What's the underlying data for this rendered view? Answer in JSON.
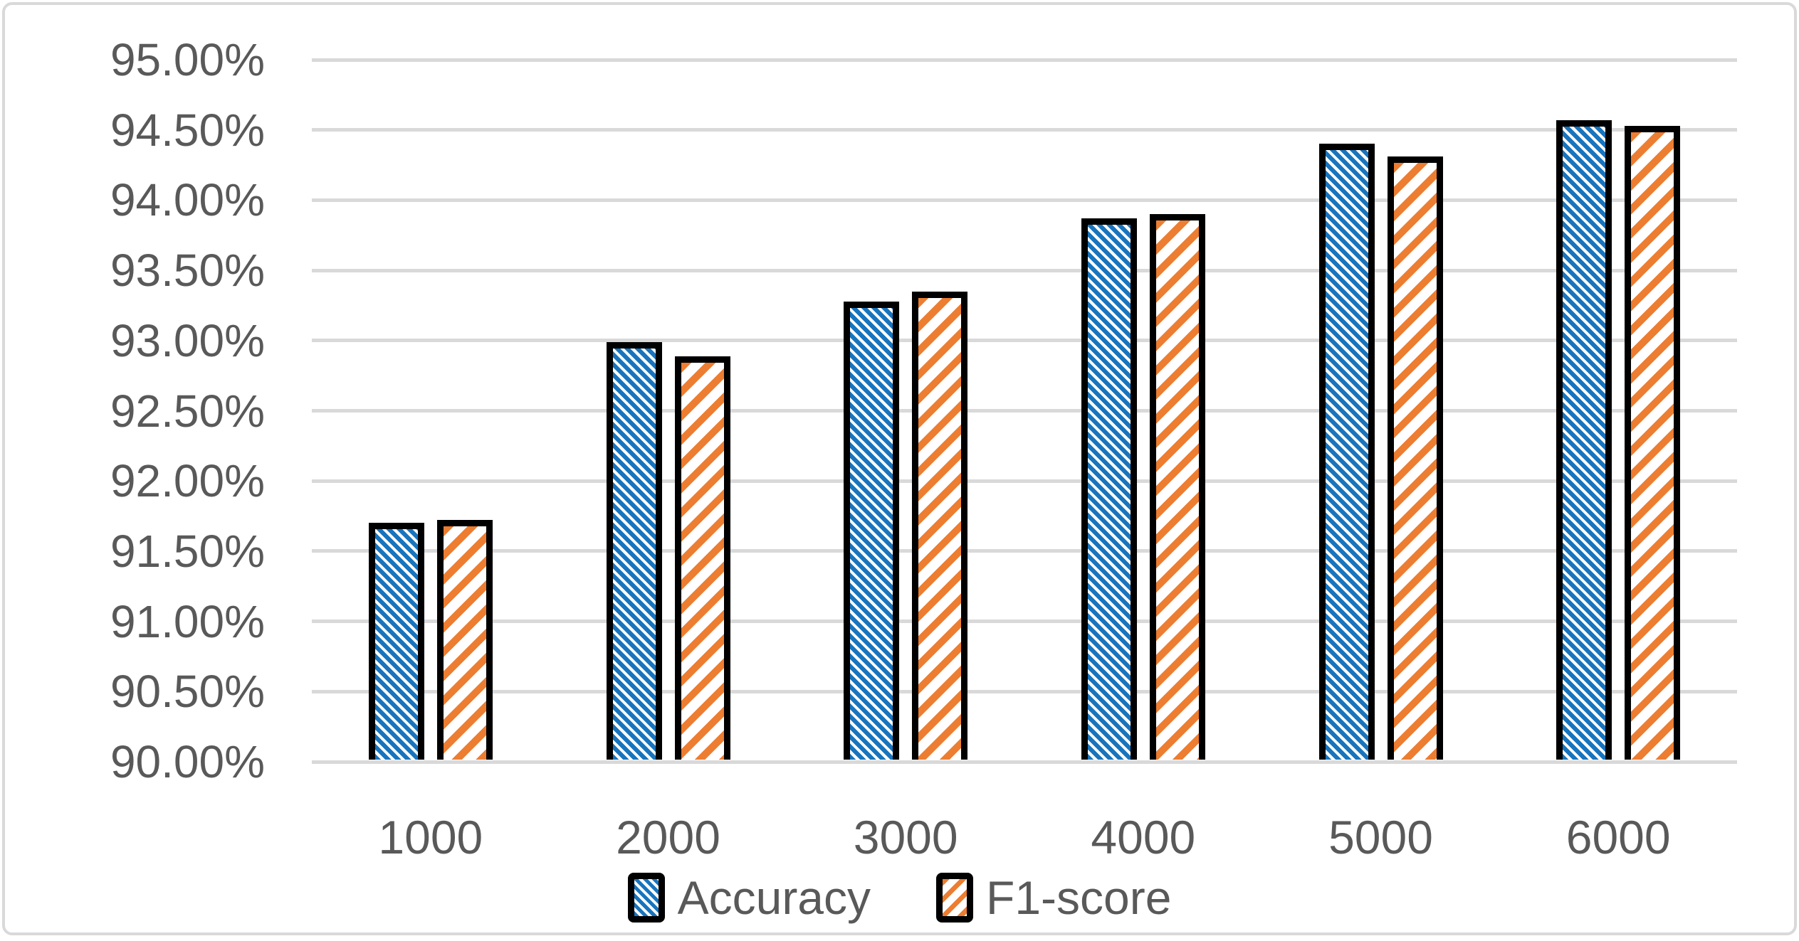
{
  "chart_data": {
    "type": "bar",
    "title": "",
    "xlabel": "",
    "ylabel": "",
    "categories": [
      "1000",
      "2000",
      "3000",
      "4000",
      "5000",
      "6000"
    ],
    "series": [
      {
        "name": "Accuracy",
        "color": "#1874bd",
        "hatch": "diagonal-down-dense",
        "values": [
          91.7,
          92.99,
          93.28,
          93.87,
          94.4,
          94.57
        ]
      },
      {
        "name": "F1-score",
        "color": "#ed7d31",
        "hatch": "diagonal-up-wide",
        "values": [
          91.72,
          92.89,
          93.35,
          93.9,
          94.31,
          94.53
        ]
      }
    ],
    "ylim": [
      90,
      95
    ],
    "ytick_step": 0.5,
    "yticks": [
      "90.00%",
      "90.50%",
      "91.00%",
      "91.50%",
      "92.00%",
      "92.50%",
      "93.00%",
      "93.50%",
      "94.00%",
      "94.50%",
      "95.00%"
    ],
    "grid": "horizontal-only",
    "legend_position": "bottom-center"
  },
  "legend": {
    "items": [
      {
        "label": "Accuracy"
      },
      {
        "label": "F1-score"
      }
    ]
  },
  "colors": {
    "background": "#ffffff",
    "frame": "#d9d9d9",
    "grid": "#d9d9d9",
    "text": "#595959",
    "bar_border": "#000000",
    "accuracy_blue": "#1874bd",
    "f1_orange": "#ed7d31"
  }
}
